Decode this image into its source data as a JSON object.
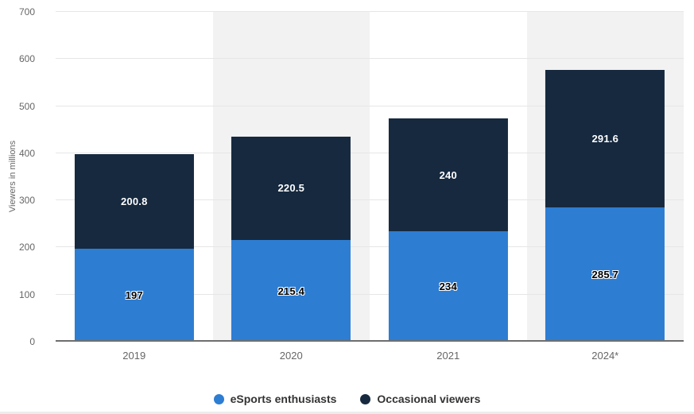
{
  "chart_data": {
    "type": "bar",
    "stacked": true,
    "title": "",
    "xlabel": "",
    "ylabel": "Viewers in millions",
    "categories": [
      "2019",
      "2020",
      "2021",
      "2024*"
    ],
    "series": [
      {
        "name": "eSports enthusiasts",
        "color": "#2d7dd2",
        "label_color": "#000000",
        "label_outline": "#ffffff",
        "values": [
          197,
          215.4,
          234,
          285.7
        ]
      },
      {
        "name": "Occasional viewers",
        "color": "#16293f",
        "label_color": "#ffffff",
        "label_outline": "#16293f",
        "values": [
          200.8,
          220.5,
          240,
          291.6
        ]
      }
    ],
    "ylim": [
      0,
      700
    ],
    "yticks": [
      0,
      100,
      200,
      300,
      400,
      500,
      600,
      700
    ],
    "grid": true,
    "legend_position": "bottom",
    "band_color": "#f2f2f2",
    "axis_color": "#6e6e6e",
    "background": "#ffffff"
  }
}
